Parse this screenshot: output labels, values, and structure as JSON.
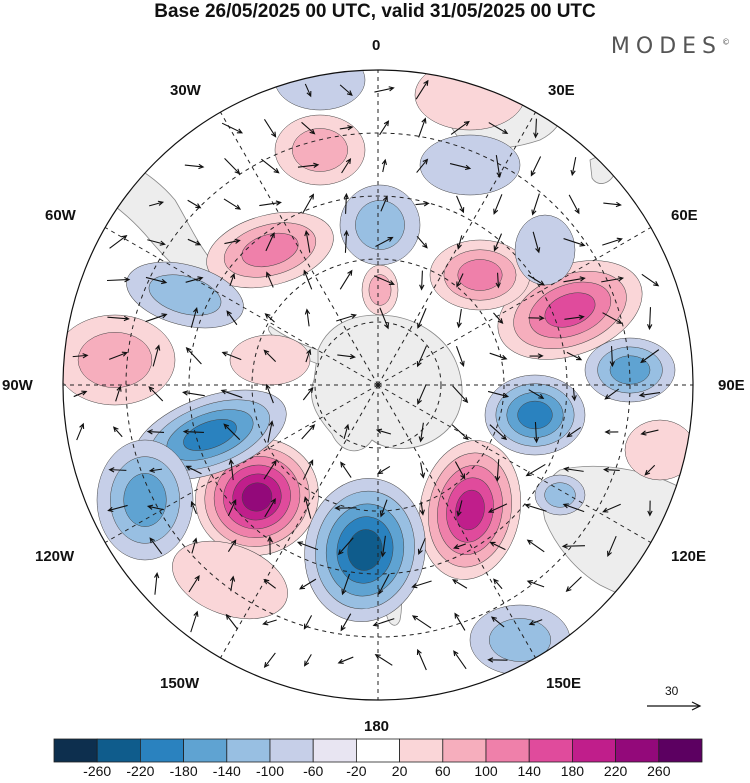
{
  "header": {
    "title": "Base 26/05/2025 00 UTC, valid 31/05/2025 00 UTC",
    "brand": "MODES",
    "brand_mark": "©"
  },
  "map": {
    "projection": "south-polar-stereographic",
    "longitude_labels": [
      "0",
      "30E",
      "60E",
      "90E",
      "120E",
      "150E",
      "180",
      "150W",
      "120W",
      "90W",
      "60W",
      "30W"
    ],
    "land_color": "#ededed",
    "grid_style": "dashed"
  },
  "anomaly_centers": [
    {
      "sign": "positive",
      "value": 260,
      "near": "120W-135W"
    },
    {
      "sign": "positive",
      "value": 220,
      "near": "150E-160E"
    },
    {
      "sign": "negative",
      "value": -200,
      "near": "180"
    },
    {
      "sign": "negative",
      "value": -180,
      "near": "100W"
    },
    {
      "sign": "negative",
      "value": -140,
      "near": "90E"
    },
    {
      "sign": "positive",
      "value": 140,
      "near": "60E"
    }
  ],
  "vectors": {
    "reference_label": "30"
  },
  "colorbar": {
    "ticks": [
      "-260",
      "-220",
      "-180",
      "-140",
      "-100",
      "-60",
      "-20",
      "20",
      "60",
      "100",
      "140",
      "180",
      "220",
      "260"
    ],
    "colors": [
      "#0d2f4e",
      "#0f5c8c",
      "#2a82bf",
      "#5fa3d2",
      "#98bfe2",
      "#c6cfe8",
      "#e8e5f2",
      "#ffffff",
      "#fad6d8",
      "#f6aebd",
      "#ef80aa",
      "#e04b9c",
      "#c01e8b",
      "#93097a",
      "#5c0061"
    ]
  }
}
